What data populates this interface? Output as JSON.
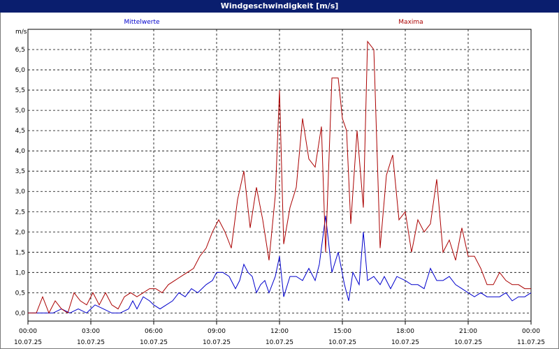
{
  "window": {
    "title": "Windgeschwindigkeit [m/s]"
  },
  "chart_data": {
    "type": "line",
    "title": "Windgeschwindigkeit [m/s]",
    "ylabel": "m/s",
    "ylim": [
      -0.2,
      7.0
    ],
    "xlim": [
      0,
      24
    ],
    "yticks": [
      "0.0",
      "0.5",
      "1.0",
      "1.5",
      "2.0",
      "2.5",
      "3.0",
      "3.5",
      "4.0",
      "4.5",
      "5.0",
      "5.5",
      "6.0",
      "6.5"
    ],
    "xticks": [
      {
        "x": 0,
        "time": "00:00",
        "date": "10.07.25"
      },
      {
        "x": 3,
        "time": "03:00",
        "date": "10.07.25"
      },
      {
        "x": 6,
        "time": "06:00",
        "date": "10.07.25"
      },
      {
        "x": 9,
        "time": "09:00",
        "date": "10.07.25"
      },
      {
        "x": 12,
        "time": "12:00",
        "date": "10.07.25"
      },
      {
        "x": 15,
        "time": "15:00",
        "date": "10.07.25"
      },
      {
        "x": 18,
        "time": "18:00",
        "date": "10.07.25"
      },
      {
        "x": 21,
        "time": "21:00",
        "date": "10.07.25"
      },
      {
        "x": 24,
        "time": "00:00",
        "date": "11.07.25"
      }
    ],
    "grid": true,
    "series": [
      {
        "name": "Mittelwerte",
        "color": "#0000cc",
        "points": [
          [
            0,
            0
          ],
          [
            0.4,
            0
          ],
          [
            0.8,
            0
          ],
          [
            1.2,
            0
          ],
          [
            1.6,
            0.1
          ],
          [
            2.0,
            0
          ],
          [
            2.4,
            0.1
          ],
          [
            2.8,
            0
          ],
          [
            3.2,
            0.2
          ],
          [
            3.6,
            0.1
          ],
          [
            4.0,
            0
          ],
          [
            4.4,
            0
          ],
          [
            4.8,
            0.1
          ],
          [
            5.0,
            0.3
          ],
          [
            5.2,
            0.1
          ],
          [
            5.5,
            0.4
          ],
          [
            5.8,
            0.3
          ],
          [
            6.0,
            0.2
          ],
          [
            6.3,
            0.1
          ],
          [
            6.6,
            0.2
          ],
          [
            6.9,
            0.3
          ],
          [
            7.2,
            0.5
          ],
          [
            7.5,
            0.4
          ],
          [
            7.8,
            0.6
          ],
          [
            8.1,
            0.5
          ],
          [
            8.5,
            0.7
          ],
          [
            8.8,
            0.8
          ],
          [
            9.0,
            1.0
          ],
          [
            9.3,
            1.0
          ],
          [
            9.6,
            0.9
          ],
          [
            9.9,
            0.6
          ],
          [
            10.1,
            0.8
          ],
          [
            10.3,
            1.2
          ],
          [
            10.5,
            1.0
          ],
          [
            10.7,
            0.9
          ],
          [
            10.9,
            0.5
          ],
          [
            11.1,
            0.7
          ],
          [
            11.3,
            0.8
          ],
          [
            11.5,
            0.5
          ],
          [
            11.8,
            0.9
          ],
          [
            12.0,
            1.4
          ],
          [
            12.2,
            0.4
          ],
          [
            12.5,
            0.9
          ],
          [
            12.8,
            0.9
          ],
          [
            13.1,
            0.8
          ],
          [
            13.4,
            1.1
          ],
          [
            13.7,
            0.8
          ],
          [
            13.9,
            1.2
          ],
          [
            14.2,
            2.4
          ],
          [
            14.5,
            1.0
          ],
          [
            14.8,
            1.5
          ],
          [
            15.1,
            0.7
          ],
          [
            15.3,
            0.3
          ],
          [
            15.5,
            1.0
          ],
          [
            15.8,
            0.7
          ],
          [
            16.0,
            2.0
          ],
          [
            16.2,
            0.8
          ],
          [
            16.5,
            0.9
          ],
          [
            16.8,
            0.7
          ],
          [
            17.0,
            0.9
          ],
          [
            17.3,
            0.6
          ],
          [
            17.6,
            0.9
          ],
          [
            18.0,
            0.8
          ],
          [
            18.3,
            0.7
          ],
          [
            18.6,
            0.7
          ],
          [
            18.9,
            0.6
          ],
          [
            19.2,
            1.1
          ],
          [
            19.5,
            0.8
          ],
          [
            19.8,
            0.8
          ],
          [
            20.1,
            0.9
          ],
          [
            20.4,
            0.7
          ],
          [
            20.7,
            0.6
          ],
          [
            21.0,
            0.5
          ],
          [
            21.3,
            0.4
          ],
          [
            21.6,
            0.5
          ],
          [
            21.9,
            0.4
          ],
          [
            22.2,
            0.4
          ],
          [
            22.5,
            0.4
          ],
          [
            22.8,
            0.5
          ],
          [
            23.1,
            0.3
          ],
          [
            23.4,
            0.4
          ],
          [
            23.7,
            0.4
          ],
          [
            24.0,
            0.5
          ]
        ]
      },
      {
        "name": "Maxima",
        "color": "#aa0000",
        "points": [
          [
            0,
            0
          ],
          [
            0.4,
            0
          ],
          [
            0.7,
            0.4
          ],
          [
            1.0,
            0
          ],
          [
            1.3,
            0.3
          ],
          [
            1.6,
            0.1
          ],
          [
            1.9,
            0
          ],
          [
            2.2,
            0.5
          ],
          [
            2.5,
            0.3
          ],
          [
            2.8,
            0.2
          ],
          [
            3.1,
            0.5
          ],
          [
            3.4,
            0.2
          ],
          [
            3.7,
            0.5
          ],
          [
            4.0,
            0.2
          ],
          [
            4.3,
            0.1
          ],
          [
            4.6,
            0.4
          ],
          [
            4.9,
            0.5
          ],
          [
            5.2,
            0.4
          ],
          [
            5.5,
            0.5
          ],
          [
            5.8,
            0.6
          ],
          [
            6.1,
            0.6
          ],
          [
            6.4,
            0.5
          ],
          [
            6.7,
            0.7
          ],
          [
            7.0,
            0.8
          ],
          [
            7.3,
            0.9
          ],
          [
            7.6,
            1.0
          ],
          [
            7.9,
            1.1
          ],
          [
            8.2,
            1.4
          ],
          [
            8.5,
            1.6
          ],
          [
            8.8,
            2.0
          ],
          [
            9.1,
            2.3
          ],
          [
            9.4,
            2.0
          ],
          [
            9.7,
            1.6
          ],
          [
            10.0,
            2.8
          ],
          [
            10.3,
            3.5
          ],
          [
            10.6,
            2.1
          ],
          [
            10.9,
            3.1
          ],
          [
            11.2,
            2.3
          ],
          [
            11.5,
            1.3
          ],
          [
            11.8,
            2.9
          ],
          [
            12.0,
            5.5
          ],
          [
            12.2,
            1.7
          ],
          [
            12.5,
            2.6
          ],
          [
            12.8,
            3.1
          ],
          [
            13.1,
            4.8
          ],
          [
            13.4,
            3.8
          ],
          [
            13.7,
            3.6
          ],
          [
            14.0,
            4.6
          ],
          [
            14.2,
            1.5
          ],
          [
            14.5,
            5.8
          ],
          [
            14.8,
            5.8
          ],
          [
            15.0,
            4.8
          ],
          [
            15.2,
            4.5
          ],
          [
            15.4,
            2.2
          ],
          [
            15.7,
            4.5
          ],
          [
            16.0,
            2.6
          ],
          [
            16.2,
            6.7
          ],
          [
            16.5,
            6.5
          ],
          [
            16.8,
            1.6
          ],
          [
            17.1,
            3.4
          ],
          [
            17.4,
            3.9
          ],
          [
            17.7,
            2.3
          ],
          [
            18.0,
            2.5
          ],
          [
            18.3,
            1.5
          ],
          [
            18.6,
            2.3
          ],
          [
            18.9,
            2.0
          ],
          [
            19.2,
            2.2
          ],
          [
            19.5,
            3.3
          ],
          [
            19.8,
            1.5
          ],
          [
            20.1,
            1.8
          ],
          [
            20.4,
            1.3
          ],
          [
            20.7,
            2.1
          ],
          [
            21.0,
            1.4
          ],
          [
            21.3,
            1.4
          ],
          [
            21.6,
            1.1
          ],
          [
            21.9,
            0.7
          ],
          [
            22.2,
            0.7
          ],
          [
            22.5,
            1.0
          ],
          [
            22.8,
            0.8
          ],
          [
            23.1,
            0.7
          ],
          [
            23.4,
            0.7
          ],
          [
            23.7,
            0.6
          ],
          [
            24.0,
            0.6
          ]
        ]
      }
    ]
  }
}
